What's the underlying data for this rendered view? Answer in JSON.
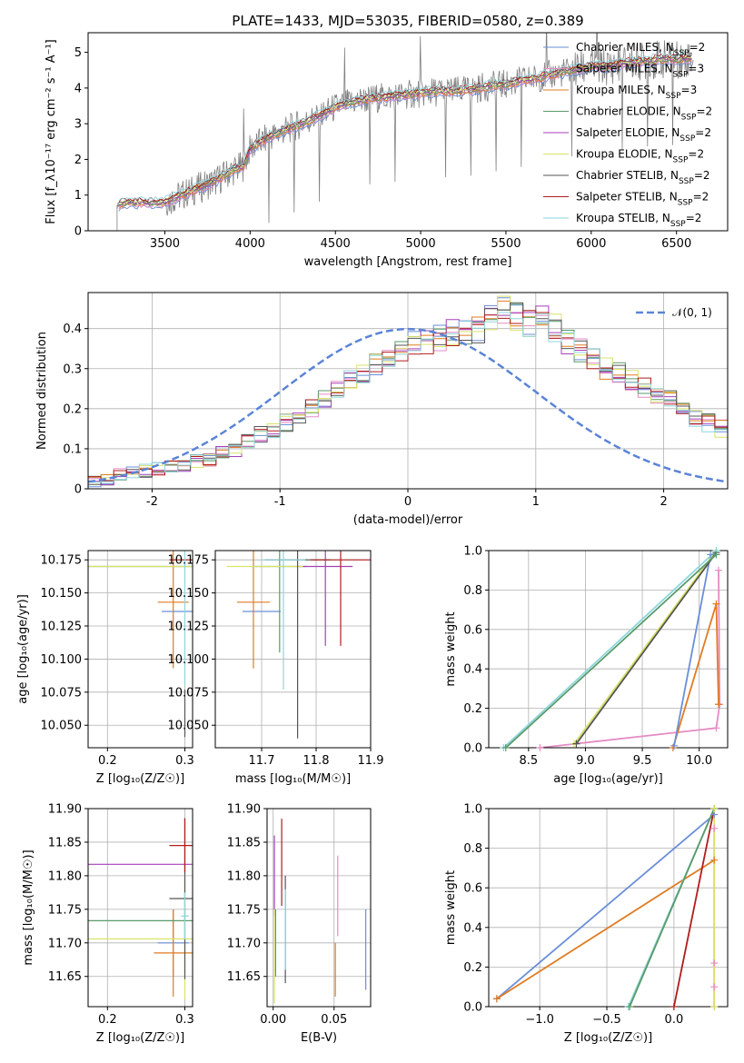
{
  "title": "PLATE=1433, MJD=53035, FIBERID=0580, z=0.389",
  "colors": {
    "Chabrier MILES": "#6a8fd8",
    "Salpeter MILES": "#e58bc4",
    "Kroupa MILES": "#e07b22",
    "Chabrier ELODIE": "#5a9a6a",
    "Salpeter ELODIE": "#a640b8",
    "Kroupa ELODIE": "#d9e36a",
    "Chabrier STELIB": "#555555",
    "Salpeter STELIB": "#b01c1c",
    "Kroupa STELIB": "#8fd6dc"
  },
  "chart_data": [
    {
      "id": "spectrum",
      "type": "line",
      "xlabel": "wavelength [Angstrom, rest frame]",
      "ylabel": "Flux [f_λ10⁻¹⁷ erg cm⁻² s⁻¹ A⁻¹]",
      "xlim": [
        3050,
        6800
      ],
      "ylim": [
        0,
        5.55
      ],
      "xticks": [
        3500,
        4000,
        4500,
        5000,
        5500,
        6000,
        6500
      ],
      "yticks": [
        0,
        1,
        2,
        3,
        4,
        5
      ],
      "grid": false,
      "legend_position": "right",
      "data_color": "#808080",
      "continuum": {
        "x": [
          3220,
          3300,
          3400,
          3500,
          3600,
          3700,
          3800,
          3900,
          3960,
          4000,
          4100,
          4200,
          4300,
          4400,
          4500,
          4600,
          4700,
          4800,
          4900,
          5000,
          5100,
          5200,
          5300,
          5400,
          5500,
          5600,
          5700,
          5800,
          5900,
          6000,
          6100,
          6200,
          6300,
          6400,
          6500,
          6600
        ],
        "y": [
          0.72,
          0.8,
          0.78,
          0.82,
          1.0,
          1.2,
          1.4,
          1.7,
          1.8,
          2.3,
          2.6,
          2.8,
          3.0,
          3.2,
          3.45,
          3.6,
          3.7,
          3.75,
          3.8,
          3.85,
          3.9,
          3.9,
          3.95,
          4.05,
          4.1,
          4.2,
          4.3,
          4.4,
          4.5,
          4.6,
          4.6,
          4.7,
          4.75,
          4.8,
          4.8,
          4.85
        ]
      },
      "legend": [
        {
          "name": "Chabrier MILES",
          "nssp": "2"
        },
        {
          "name": "Salpeter MILES",
          "nssp": "3"
        },
        {
          "name": "Kroupa MILES",
          "nssp": "3"
        },
        {
          "name": "Chabrier ELODIE",
          "nssp": "2"
        },
        {
          "name": "Salpeter ELODIE",
          "nssp": "2"
        },
        {
          "name": "Kroupa ELODIE",
          "nssp": "2"
        },
        {
          "name": "Chabrier STELIB",
          "nssp": "2"
        },
        {
          "name": "Salpeter STELIB",
          "nssp": "2"
        },
        {
          "name": "Kroupa STELIB",
          "nssp": "2"
        }
      ]
    },
    {
      "id": "residuals",
      "type": "line",
      "xlabel": "(data-model)/error",
      "ylabel": "Normed distribution",
      "xlim": [
        -2.5,
        2.5
      ],
      "ylim": [
        0,
        0.49
      ],
      "xticks": [
        -2,
        -1,
        0,
        1,
        2
      ],
      "yticks": [
        0.0,
        0.1,
        0.2,
        0.3,
        0.4
      ],
      "grid": true,
      "legend_position": "top-right",
      "gaussian_label": "𝒩(0, 1)",
      "gaussian_color": "#5b84d6",
      "bin_width": 0.1,
      "bin_start": -2.5,
      "base_counts": [
        0.02,
        0.025,
        0.035,
        0.04,
        0.045,
        0.05,
        0.055,
        0.06,
        0.07,
        0.075,
        0.09,
        0.1,
        0.12,
        0.135,
        0.15,
        0.165,
        0.18,
        0.2,
        0.22,
        0.245,
        0.27,
        0.29,
        0.31,
        0.33,
        0.35,
        0.36,
        0.37,
        0.38,
        0.39,
        0.395,
        0.4,
        0.42,
        0.45,
        0.43,
        0.41,
        0.43,
        0.4,
        0.37,
        0.35,
        0.33,
        0.3,
        0.29,
        0.27,
        0.25,
        0.23,
        0.22,
        0.2,
        0.18,
        0.165,
        0.15,
        0.135,
        0.12,
        0.11,
        0.1,
        0.09,
        0.08,
        0.075,
        0.07,
        0.06,
        0.05
      ]
    },
    {
      "id": "age-vs-Z",
      "type": "scatter",
      "xlabel": "Z [log₁₀(Z/Z☉)]",
      "ylabel": "age  [log₁₀(age/yr)]",
      "xlim": [
        0.175,
        0.31
      ],
      "ylim": [
        10.033,
        10.182
      ],
      "xticks": [
        0.2,
        0.3
      ],
      "yticks": [
        10.05,
        10.075,
        10.1,
        10.125,
        10.15,
        10.175
      ],
      "ytick_labels": [
        "10.050",
        "10.075",
        "10.100",
        "10.125",
        "10.150",
        "10.175"
      ],
      "grid": true,
      "points": [
        {
          "model": "Chabrier MILES",
          "x": 0.3,
          "y": 10.136,
          "xerr": 0.03,
          "yerr": 0
        },
        {
          "model": "Kroupa MILES",
          "x": 0.285,
          "y": 10.143,
          "xerr": 0.02,
          "yerr": 0.05
        },
        {
          "model": "Chabrier ELODIE",
          "x": 0.3,
          "y": 10.17,
          "xerr": 0.125,
          "yerr": 0
        },
        {
          "model": "Kroupa ELODIE",
          "x": 0.3,
          "y": 10.17,
          "xerr": 0.125,
          "yerr": 0
        },
        {
          "model": "Chabrier STELIB",
          "x": 0.3,
          "y": 10.059,
          "xerr": 0,
          "yerr": 0.018
        },
        {
          "model": "Salpeter STELIB",
          "x": 0.3,
          "y": 10.175,
          "xerr": 0.02,
          "yerr": 0
        },
        {
          "model": "Kroupa STELIB",
          "x": 0.3,
          "y": 10.17,
          "xerr": 0,
          "yerr": 0.09
        }
      ]
    },
    {
      "id": "age-vs-mass",
      "type": "scatter",
      "xlabel": "mass [log₁₀(M/M☉)]",
      "ylabel": "",
      "xlim": [
        11.615,
        11.9
      ],
      "ylim": [
        10.033,
        10.182
      ],
      "xticks": [
        11.7,
        11.8,
        11.9
      ],
      "yticks": [
        10.05,
        10.075,
        10.1,
        10.125,
        10.15,
        10.175
      ],
      "ytick_labels": [
        "10.050",
        "10.075",
        "10.100",
        "10.125",
        "10.150",
        "10.175"
      ],
      "grid": true,
      "points": [
        {
          "model": "Chabrier MILES",
          "x": 11.7,
          "y": 10.136,
          "xerr": 0.035,
          "yerr": 0
        },
        {
          "model": "Kroupa MILES",
          "x": 11.685,
          "y": 10.143,
          "xerr": 0.03,
          "yerr": 0.05
        },
        {
          "model": "Chabrier ELODIE",
          "x": 11.733,
          "y": 10.17,
          "xerr": 0.05,
          "yerr": 0.065
        },
        {
          "model": "Salpeter ELODIE",
          "x": 11.817,
          "y": 10.17,
          "xerr": 0.05,
          "yerr": 0.06
        },
        {
          "model": "Kroupa ELODIE",
          "x": 11.706,
          "y": 10.17,
          "xerr": 0.07,
          "yerr": 0
        },
        {
          "model": "Chabrier STELIB",
          "x": 11.766,
          "y": 10.175,
          "xerr": 0.06,
          "yerr": 0.135
        },
        {
          "model": "Salpeter STELIB",
          "x": 11.845,
          "y": 10.175,
          "xerr": 0.055,
          "yerr": 0.065
        },
        {
          "model": "Kroupa STELIB",
          "x": 11.74,
          "y": 10.175,
          "xerr": 0.04,
          "yerr": 0.098
        }
      ]
    },
    {
      "id": "cum-weight-vs-age",
      "type": "line",
      "xlabel": "age  [log₁₀(age/yr)]",
      "ylabel": "mass weight",
      "xlim": [
        8.15,
        10.25
      ],
      "ylim": [
        0,
        1
      ],
      "xticks": [
        8.5,
        9.0,
        9.5,
        10.0
      ],
      "xtick_labels": [
        "8.5",
        "9.0",
        "9.5",
        "10.0"
      ],
      "yticks": [
        0,
        0.2,
        0.4,
        0.6,
        0.8,
        1.0
      ],
      "ytick_labels": [
        "0.0",
        "0.2",
        "0.4",
        "0.6",
        "0.8",
        "1.0"
      ],
      "grid": true,
      "series": [
        {
          "model": "Salpeter MILES",
          "x": [
            8.6,
            10.15,
            10.18,
            10.17
          ],
          "y": [
            0.0,
            0.1,
            0.22,
            0.9
          ]
        },
        {
          "model": "Kroupa MILES",
          "x": [
            9.77,
            10.15,
            10.17
          ],
          "y": [
            0.0,
            0.73,
            0.22
          ]
        },
        {
          "model": "Chabrier MILES",
          "x": [
            9.78,
            10.1
          ],
          "y": [
            0.01,
            0.98
          ]
        },
        {
          "model": "Kroupa ELODIE",
          "x": [
            8.9,
            10.15
          ],
          "y": [
            0.02,
            1.0
          ]
        },
        {
          "model": "Chabrier STELIB",
          "x": [
            8.92,
            10.15
          ],
          "y": [
            0.02,
            0.99
          ]
        },
        {
          "model": "Kroupa STELIB",
          "x": [
            8.28,
            10.15
          ],
          "y": [
            0.0,
            1.0
          ]
        },
        {
          "model": "Chabrier ELODIE",
          "x": [
            8.3,
            10.15
          ],
          "y": [
            0.0,
            0.98
          ]
        }
      ]
    },
    {
      "id": "mass-vs-Z",
      "type": "scatter",
      "xlabel": "Z [log₁₀(Z/Z☉)]",
      "ylabel": "mass [log₁₀(M/M☉)]",
      "xlim": [
        0.175,
        0.31
      ],
      "ylim": [
        11.605,
        11.9
      ],
      "xticks": [
        0.2,
        0.3
      ],
      "yticks": [
        11.65,
        11.7,
        11.75,
        11.8,
        11.85,
        11.9
      ],
      "ytick_labels": [
        "11.65",
        "11.70",
        "11.75",
        "11.80",
        "11.85",
        "11.90"
      ],
      "grid": true,
      "points": [
        {
          "model": "Chabrier MILES",
          "x": 0.285,
          "y": 11.7,
          "xerr": 0.02,
          "yerr": 0.05
        },
        {
          "model": "Kroupa MILES",
          "x": 0.285,
          "y": 11.685,
          "xerr": 0.025,
          "yerr": 0.065
        },
        {
          "model": "Chabrier ELODIE",
          "x": 0.3,
          "y": 11.733,
          "xerr": 0.125,
          "yerr": 0
        },
        {
          "model": "Salpeter ELODIE",
          "x": 0.3,
          "y": 11.817,
          "xerr": 0.125,
          "yerr": 0
        },
        {
          "model": "Kroupa ELODIE",
          "x": 0.3,
          "y": 11.706,
          "xerr": 0.125,
          "yerr": 0.09
        },
        {
          "model": "Chabrier STELIB",
          "x": 0.3,
          "y": 11.766,
          "xerr": 0.02,
          "yerr": 0.12
        },
        {
          "model": "Salpeter STELIB",
          "x": 0.3,
          "y": 11.845,
          "xerr": 0.02,
          "yerr": 0.04
        },
        {
          "model": "Kroupa STELIB",
          "x": 0.3,
          "y": 11.74,
          "xerr": 0.005,
          "yerr": 0.035
        }
      ]
    },
    {
      "id": "mass-vs-ebv",
      "type": "scatter",
      "xlabel": "E(B-V)",
      "ylabel": "",
      "xlim": [
        -0.005,
        0.08
      ],
      "ylim": [
        11.605,
        11.9
      ],
      "xticks": [
        0.0,
        0.05
      ],
      "xtick_labels": [
        "0.00",
        "0.05"
      ],
      "yticks": [
        11.65,
        11.7,
        11.75,
        11.8,
        11.85,
        11.9
      ],
      "ytick_labels": [
        "11.65",
        "11.70",
        "11.75",
        "11.80",
        "11.85",
        "11.90"
      ],
      "grid": true,
      "points": [
        {
          "model": "Chabrier MILES",
          "x": 0.076,
          "y": 11.69,
          "xerr": 0,
          "yerr": 0.06
        },
        {
          "model": "Salpeter MILES",
          "x": 0.053,
          "y": 11.77,
          "xerr": 0,
          "yerr": 0.06
        },
        {
          "model": "Kroupa MILES",
          "x": 0.051,
          "y": 11.66,
          "xerr": 0,
          "yerr": 0.04
        },
        {
          "model": "Chabrier ELODIE",
          "x": 0.002,
          "y": 11.7,
          "xerr": 0,
          "yerr": 0.05
        },
        {
          "model": "Salpeter ELODIE",
          "x": 0.001,
          "y": 11.8,
          "xerr": 0,
          "yerr": 0.06
        },
        {
          "model": "Kroupa ELODIE",
          "x": 0.001,
          "y": 11.68,
          "xerr": 0,
          "yerr": 0.07
        },
        {
          "model": "Chabrier STELIB",
          "x": 0.01,
          "y": 11.72,
          "xerr": 0,
          "yerr": 0.08
        },
        {
          "model": "Salpeter STELIB",
          "x": 0.007,
          "y": 11.82,
          "xerr": 0,
          "yerr": 0.065
        },
        {
          "model": "Kroupa STELIB",
          "x": 0.01,
          "y": 11.72,
          "xerr": 0,
          "yerr": 0.06
        }
      ]
    },
    {
      "id": "cum-weight-vs-Z",
      "type": "line",
      "xlabel": "Z [log₁₀(Z/Z☉)]",
      "ylabel": "mass weight",
      "xlim": [
        -1.38,
        0.4
      ],
      "ylim": [
        0,
        1
      ],
      "xticks": [
        -1.0,
        -0.5,
        0.0
      ],
      "xtick_labels": [
        "−1.0",
        "−0.5",
        "0.0"
      ],
      "yticks": [
        0,
        0.2,
        0.4,
        0.6,
        0.8,
        1.0
      ],
      "ytick_labels": [
        "0.0",
        "0.2",
        "0.4",
        "0.6",
        "0.8",
        "1.0"
      ],
      "grid": true,
      "series": [
        {
          "model": "Chabrier MILES",
          "x": [
            -1.32,
            0.3
          ],
          "y": [
            0.04,
            0.97
          ]
        },
        {
          "model": "Kroupa MILES",
          "x": [
            -1.32,
            0.3
          ],
          "y": [
            0.04,
            0.74
          ]
        },
        {
          "model": "Salpeter STELIB",
          "x": [
            0.0,
            0.3
          ],
          "y": [
            0.0,
            1.0
          ]
        },
        {
          "model": "Kroupa STELIB",
          "x": [
            -0.34,
            0.3
          ],
          "y": [
            0.0,
            1.0
          ]
        },
        {
          "model": "Chabrier ELODIE",
          "x": [
            -0.33,
            0.3
          ],
          "y": [
            0.0,
            1.0
          ]
        },
        {
          "model": "Salpeter MILES",
          "x": [
            0.3,
            0.3,
            0.3,
            0.3
          ],
          "y": [
            0.0,
            0.1,
            0.22,
            0.9
          ]
        },
        {
          "model": "Kroupa ELODIE",
          "x": [
            0.3,
            0.3
          ],
          "y": [
            0.0,
            1.0
          ]
        }
      ]
    }
  ]
}
